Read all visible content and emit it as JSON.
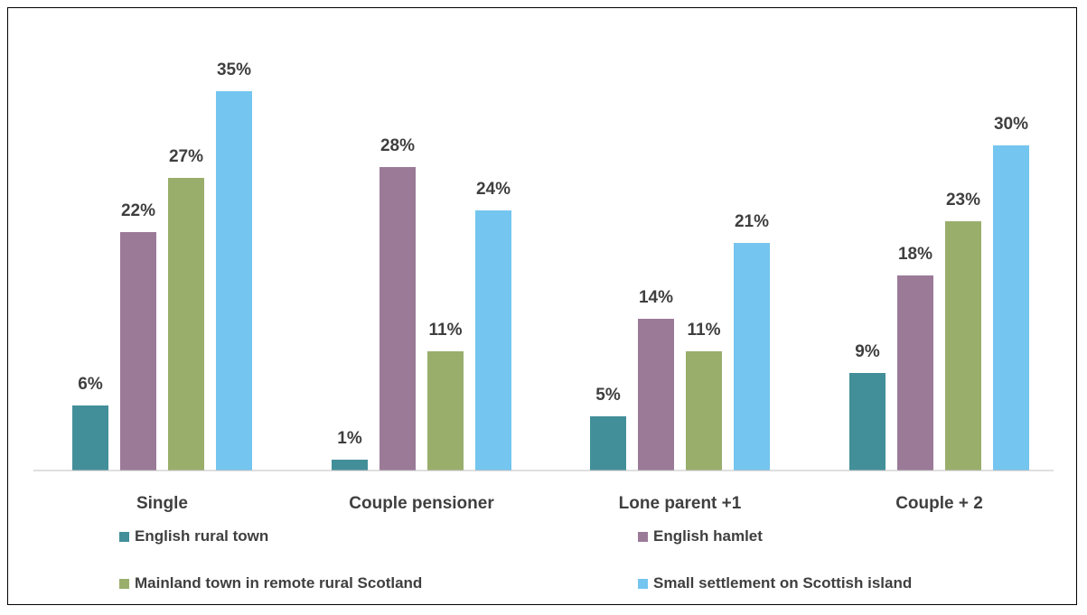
{
  "chart_data": {
    "type": "bar",
    "categories": [
      "Single",
      "Couple pensioner",
      "Lone parent +1",
      "Couple + 2"
    ],
    "series": [
      {
        "name": "English rural town",
        "color": "#428f9a",
        "values": [
          6,
          1,
          5,
          9
        ],
        "labels": [
          "6%",
          "1%",
          "5%",
          "9%"
        ]
      },
      {
        "name": "English hamlet",
        "color": "#9b7a98",
        "values": [
          22,
          28,
          14,
          18
        ],
        "labels": [
          "22%",
          "28%",
          "14%",
          "18%"
        ]
      },
      {
        "name": "Mainland town in remote rural Scotland",
        "color": "#9aae6c",
        "values": [
          27,
          11,
          11,
          23
        ],
        "labels": [
          "27%",
          "11%",
          "11%",
          "23%"
        ]
      },
      {
        "name": "Small settlement on Scottish island",
        "color": "#74c5ef",
        "values": [
          35,
          24,
          21,
          30
        ],
        "labels": [
          "35%",
          "24%",
          "21%",
          "30%"
        ]
      }
    ],
    "title": "",
    "xlabel": "",
    "ylabel": "",
    "ylim": [
      0,
      35
    ],
    "grid": false,
    "legend_position": "bottom",
    "axis_color": "#bfbfbf"
  }
}
